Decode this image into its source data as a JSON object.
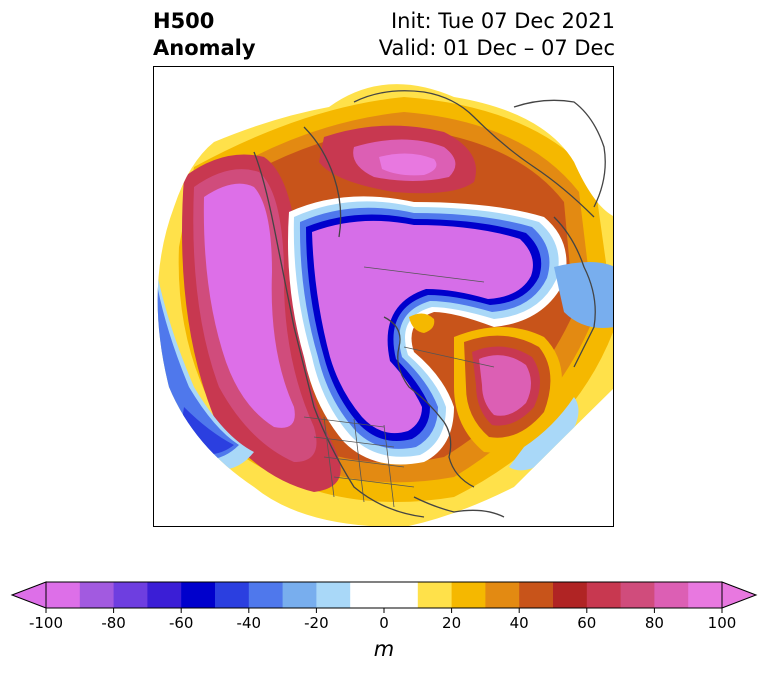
{
  "header": {
    "title_line1": "H500",
    "title_line2": "Anomaly",
    "init_text": "Init: Tue 07 Dec 2021",
    "valid_text": "Valid: 01 Dec – 07 Dec"
  },
  "colorbar": {
    "units": "m",
    "ticks": [
      "-100",
      "-80",
      "-60",
      "-40",
      "-20",
      "0",
      "20",
      "40",
      "60",
      "80",
      "100"
    ],
    "colors": [
      "#dd6fe8",
      "#a25ae0",
      "#6e3ee0",
      "#3b1ed6",
      "#0000cc",
      "#2b3fe0",
      "#4f78ec",
      "#78aeee",
      "#a9d8f8",
      "#ffffff",
      "#ffffff",
      "#ffe14a",
      "#f5b800",
      "#e38a12",
      "#c8541a",
      "#b02424",
      "#c83850",
      "#d04c7c",
      "#dc5fb4",
      "#e878e0"
    ],
    "extend_min_color": "#dd6fe8",
    "extend_max_color": "#e878e0"
  },
  "map": {
    "projection": "polar stereographic (North America)",
    "colors": {
      "strong_negative": "#d66ee8",
      "negative_edge": "#0000cc",
      "weak_negative": "#a9d8f8",
      "weak_positive": "#ffe14a",
      "moderate_positive": "#f5b800",
      "strong_positive": "#c83850",
      "very_strong_positive": "#e878e0",
      "coastline": "#444444"
    }
  }
}
